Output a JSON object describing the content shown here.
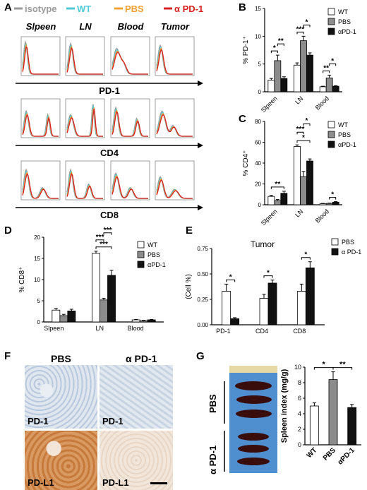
{
  "panels": {
    "A": {
      "letter": "A",
      "legend": [
        {
          "label": "isotype",
          "color": "#9a9a9a"
        },
        {
          "label": "WT",
          "color": "#4fc8d8"
        },
        {
          "label": "PBS",
          "color": "#f0a030"
        },
        {
          "label": "α PD-1",
          "color": "#d82020"
        }
      ],
      "columns": [
        "Slpeen",
        "LN",
        "Blood",
        "Tumor"
      ],
      "rows": [
        "PD-1",
        "CD4",
        "CD8"
      ]
    },
    "B": {
      "letter": "B"
    },
    "C": {
      "letter": "C"
    },
    "D": {
      "letter": "D"
    },
    "E": {
      "letter": "E"
    },
    "F": {
      "letter": "F",
      "col_labels": [
        "PBS",
        "α PD-1"
      ],
      "tile_labels": [
        "PD-1",
        "PD-1",
        "PD-L1",
        "PD-L1"
      ]
    },
    "G": {
      "letter": "G",
      "photo_labels": [
        "PBS",
        "α PD-1"
      ]
    }
  },
  "colors": {
    "wt": "#ffffff",
    "pbs": "#8c8c8c",
    "apd1": "#111111"
  },
  "chart_data": [
    {
      "id": "B",
      "type": "bar",
      "categories": [
        "Slpeen",
        "LN",
        "Blood"
      ],
      "series": [
        {
          "name": "WT",
          "values": [
            2.1,
            4.8,
            0.9
          ],
          "errors": [
            0.3,
            0.4,
            0.1
          ]
        },
        {
          "name": "PBS",
          "values": [
            5.6,
            9.2,
            2.5
          ],
          "errors": [
            1.0,
            0.8,
            0.5
          ]
        },
        {
          "name": "αPD-1",
          "values": [
            2.4,
            6.6,
            1.0
          ],
          "errors": [
            0.3,
            0.4,
            0.1
          ]
        }
      ],
      "ylabel": "% PD-1⁺",
      "ylim": [
        0,
        15
      ],
      "yticks": [
        0,
        5,
        10,
        15
      ],
      "sig": [
        {
          "cat": 0,
          "a": 0,
          "b": 1,
          "label": "*"
        },
        {
          "cat": 0,
          "a": 1,
          "b": 2,
          "label": "**"
        },
        {
          "cat": 1,
          "a": 0,
          "b": 1,
          "label": "***"
        },
        {
          "cat": 1,
          "a": 1,
          "b": 2,
          "label": "*"
        },
        {
          "cat": 2,
          "a": 0,
          "b": 1,
          "label": "**"
        },
        {
          "cat": 2,
          "a": 1,
          "b": 2,
          "label": "*"
        }
      ]
    },
    {
      "id": "C",
      "type": "bar",
      "categories": [
        "Slpeen",
        "LN",
        "Blood"
      ],
      "series": [
        {
          "name": "WT",
          "values": [
            8,
            56,
            1
          ],
          "errors": [
            1,
            1.5,
            0.3
          ]
        },
        {
          "name": "PBS",
          "values": [
            4,
            27,
            1.3
          ],
          "errors": [
            1,
            5,
            0.3
          ]
        },
        {
          "name": "αPD-1",
          "values": [
            11,
            42,
            2.5
          ],
          "errors": [
            2,
            2,
            0.5
          ]
        }
      ],
      "ylabel": "% CD4⁺",
      "ylim": [
        0,
        80
      ],
      "yticks": [
        0,
        20,
        40,
        60,
        80
      ],
      "sig": [
        {
          "cat": 0,
          "a": 0,
          "b": 2,
          "label": "**"
        },
        {
          "cat": 1,
          "a": 0,
          "b": 2,
          "label": "*"
        },
        {
          "cat": 1,
          "a": 0,
          "b": 1,
          "label": "***"
        },
        {
          "cat": 1,
          "a": 1,
          "b": 2,
          "label": "*"
        },
        {
          "cat": 2,
          "a": 1,
          "b": 2,
          "label": "*"
        }
      ]
    },
    {
      "id": "D",
      "type": "bar",
      "categories": [
        "Slpeen",
        "LN",
        "Blood"
      ],
      "series": [
        {
          "name": "WT",
          "values": [
            2.8,
            16.2,
            0.5
          ],
          "errors": [
            0.4,
            0.5,
            0.1
          ]
        },
        {
          "name": "PBS",
          "values": [
            1.5,
            5.2,
            0.3
          ],
          "errors": [
            0.3,
            0.4,
            0.1
          ]
        },
        {
          "name": "αPD-1",
          "values": [
            2.6,
            11,
            0.5
          ],
          "errors": [
            0.4,
            1.2,
            0.1
          ]
        }
      ],
      "ylabel": "% CD8⁺",
      "ylim": [
        0,
        20
      ],
      "yticks": [
        0,
        5,
        10,
        15,
        20
      ],
      "sig": [
        {
          "cat": 1,
          "a": 0,
          "b": 2,
          "label": "***"
        },
        {
          "cat": 1,
          "a": 0,
          "b": 1,
          "label": "***"
        },
        {
          "cat": 1,
          "a": 1,
          "b": 2,
          "label": "***"
        }
      ]
    },
    {
      "id": "E",
      "type": "bar",
      "title": "Tumor",
      "categories": [
        "PD-1",
        "CD4",
        "CD8"
      ],
      "series": [
        {
          "name": "PBS",
          "values": [
            0.33,
            0.26,
            0.33
          ],
          "errors": [
            0.07,
            0.04,
            0.07
          ]
        },
        {
          "name": "α PD-1",
          "values": [
            0.06,
            0.41,
            0.56
          ],
          "errors": [
            0.01,
            0.03,
            0.06
          ]
        }
      ],
      "ylabel": "(Cell %)",
      "ylim": [
        0,
        0.75
      ],
      "yticks": [
        0.0,
        0.25,
        0.5,
        0.75
      ],
      "yticklabels": [
        "0.00",
        "0.25",
        "0.50",
        "0.75"
      ],
      "sig": [
        {
          "cat": 0,
          "a": 0,
          "b": 1,
          "label": "*"
        },
        {
          "cat": 1,
          "a": 0,
          "b": 1,
          "label": "*"
        },
        {
          "cat": 2,
          "a": 0,
          "b": 1,
          "label": "*"
        }
      ]
    },
    {
      "id": "G",
      "type": "bar",
      "categories": [
        "WT",
        "PBS",
        "αPD-1"
      ],
      "values": [
        5.0,
        8.4,
        4.8
      ],
      "errors": [
        0.4,
        1.0,
        0.4
      ],
      "ylabel": "Spleen index (mg/g)",
      "ylim": [
        0,
        10
      ],
      "yticks": [
        0,
        2,
        4,
        6,
        8,
        10
      ],
      "sig": [
        {
          "a": 0,
          "b": 1,
          "label": "*"
        },
        {
          "a": 1,
          "b": 2,
          "label": "**"
        }
      ]
    }
  ]
}
